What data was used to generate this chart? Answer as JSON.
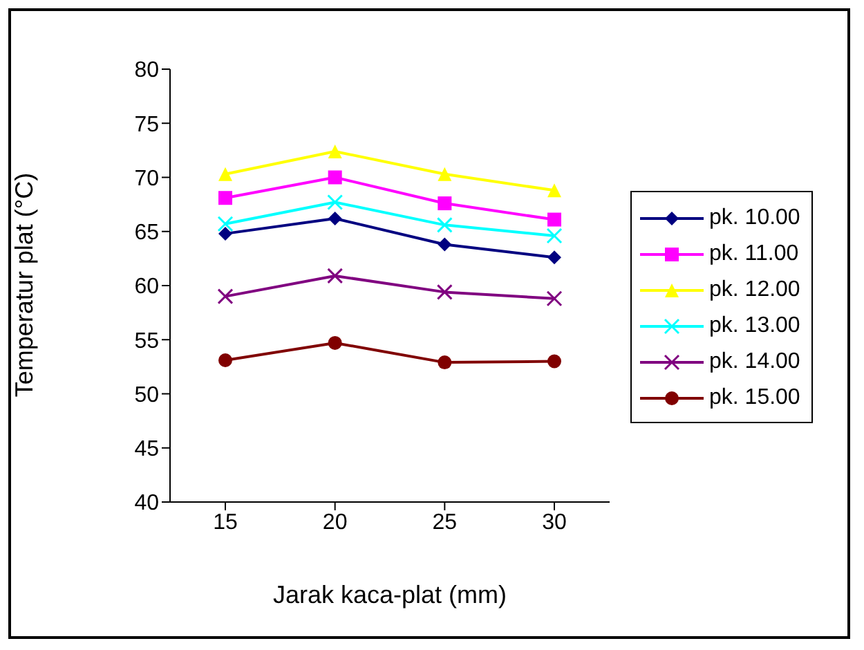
{
  "chart_data": {
    "type": "line",
    "xlabel": "Jarak kaca-plat (mm)",
    "ylabel": "Temperatur plat (°C)",
    "categories": [
      "15",
      "20",
      "25",
      "30"
    ],
    "ylim": [
      40,
      80
    ],
    "yticks": [
      40,
      45,
      50,
      55,
      60,
      65,
      70,
      75,
      80
    ],
    "grid": false,
    "legend": "right",
    "series": [
      {
        "name": "pk. 10.00",
        "color": "#000080",
        "marker": "diamond",
        "values": [
          64.8,
          66.2,
          63.8,
          62.6
        ]
      },
      {
        "name": "pk. 11.00",
        "color": "#ff00ff",
        "marker": "square",
        "values": [
          68.1,
          70.0,
          67.6,
          66.1
        ]
      },
      {
        "name": "pk. 12.00",
        "color": "#ffff00",
        "marker": "triangle",
        "values": [
          70.3,
          72.4,
          70.3,
          68.8
        ]
      },
      {
        "name": "pk. 13.00",
        "color": "#00ffff",
        "marker": "cross",
        "values": [
          65.7,
          67.7,
          65.6,
          64.6
        ]
      },
      {
        "name": "pk. 14.00",
        "color": "#800080",
        "marker": "cross",
        "values": [
          59.0,
          60.9,
          59.4,
          58.8
        ]
      },
      {
        "name": "pk. 15.00",
        "color": "#800000",
        "marker": "circle",
        "values": [
          53.1,
          54.7,
          52.9,
          53.0
        ]
      }
    ]
  }
}
